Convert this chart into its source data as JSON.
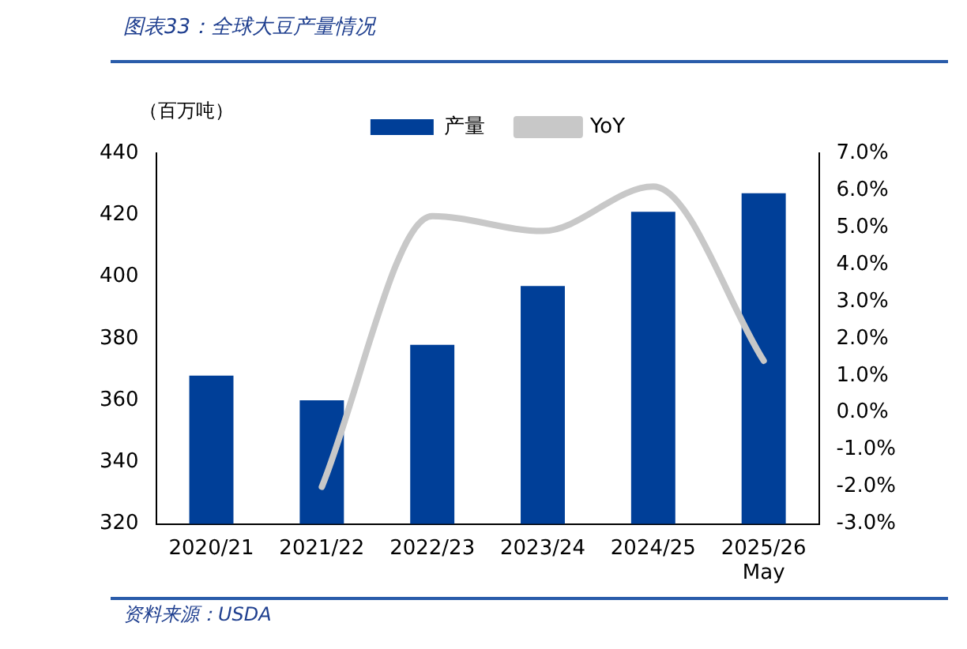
{
  "chart_data": {
    "type": "bar",
    "title": "图表33：全球大豆产量情况",
    "ylabel": "（百万吨）",
    "annotations": [
      "资料来源：USDA"
    ],
    "categories": [
      "2020/21",
      "2021/22",
      "2022/23",
      "2023/24",
      "2024/25",
      "2025/26\nMay"
    ],
    "series": [
      {
        "name": "产量",
        "color": "#003f98",
        "values": [
          368,
          360,
          378,
          397,
          421,
          427
        ]
      },
      {
        "name": "YoY",
        "type": "line",
        "axis": "y2",
        "color": "#c8c8c8",
        "values": [
          null,
          -2.0,
          5.3,
          4.9,
          6.1,
          1.4
        ]
      }
    ],
    "ylim": [
      320,
      440
    ],
    "yticks": [
      320,
      340,
      360,
      380,
      400,
      420,
      440
    ],
    "y2lim": [
      -3,
      7
    ],
    "y2ticks": [
      {
        "value": -3,
        "label": "-3.0%"
      },
      {
        "value": -2,
        "label": "-2.0%"
      },
      {
        "value": -1,
        "label": "-1.0%"
      },
      {
        "value": 0,
        "label": "0.0%"
      },
      {
        "value": 1,
        "label": "1.0%"
      },
      {
        "value": 2,
        "label": "2.0%"
      },
      {
        "value": 3,
        "label": "3.0%"
      },
      {
        "value": 4,
        "label": "4.0%"
      },
      {
        "value": 5,
        "label": "5.0%"
      },
      {
        "value": 6,
        "label": "6.0%"
      },
      {
        "value": 7,
        "label": "7.0%"
      }
    ],
    "grid": false,
    "legend": "top",
    "marker": "none",
    "line_style": "solid"
  }
}
